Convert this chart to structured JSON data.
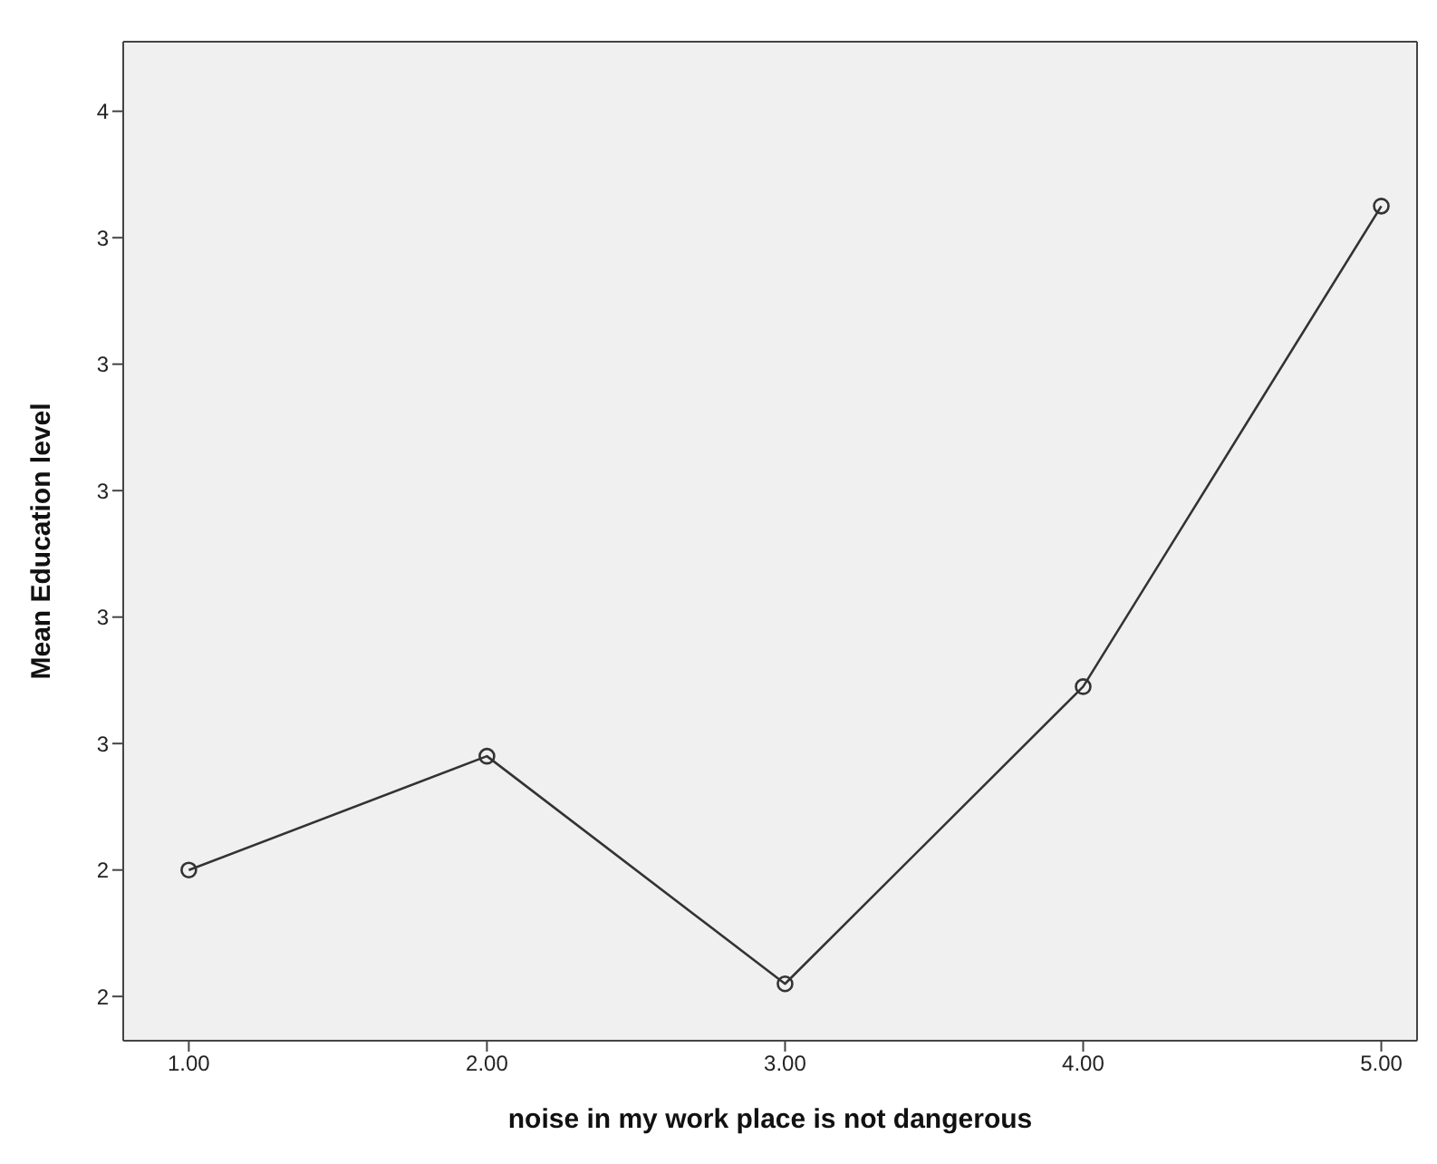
{
  "chart_data": {
    "type": "line",
    "xlabel": "noise in my work place is not dangerous",
    "ylabel": "Mean Education level",
    "x": [
      1,
      2,
      3,
      4,
      5
    ],
    "series": [
      {
        "color": "#333333",
        "values": [
          2.4,
          2.58,
          2.22,
          2.69,
          3.45
        ]
      }
    ],
    "xlim": [
      0.78,
      5.12
    ],
    "xticks": [
      {
        "value": 1,
        "label": "1.00"
      },
      {
        "value": 2,
        "label": "2.00"
      },
      {
        "value": 3,
        "label": "3.00"
      },
      {
        "value": 4,
        "label": "4.00"
      },
      {
        "value": 5,
        "label": "5.00"
      }
    ],
    "ylim": [
      2.13,
      3.71
    ],
    "yticks": [
      {
        "value": 2.2,
        "label": "2"
      },
      {
        "value": 2.4,
        "label": "2"
      },
      {
        "value": 2.6,
        "label": "3"
      },
      {
        "value": 2.8,
        "label": "3"
      },
      {
        "value": 3.0,
        "label": "3"
      },
      {
        "value": 3.2,
        "label": "3"
      },
      {
        "value": 3.4,
        "label": "3"
      },
      {
        "value": 3.6,
        "label": "4"
      }
    ],
    "grid": false,
    "legend": false,
    "marker": "circle",
    "line_style": "solid"
  }
}
